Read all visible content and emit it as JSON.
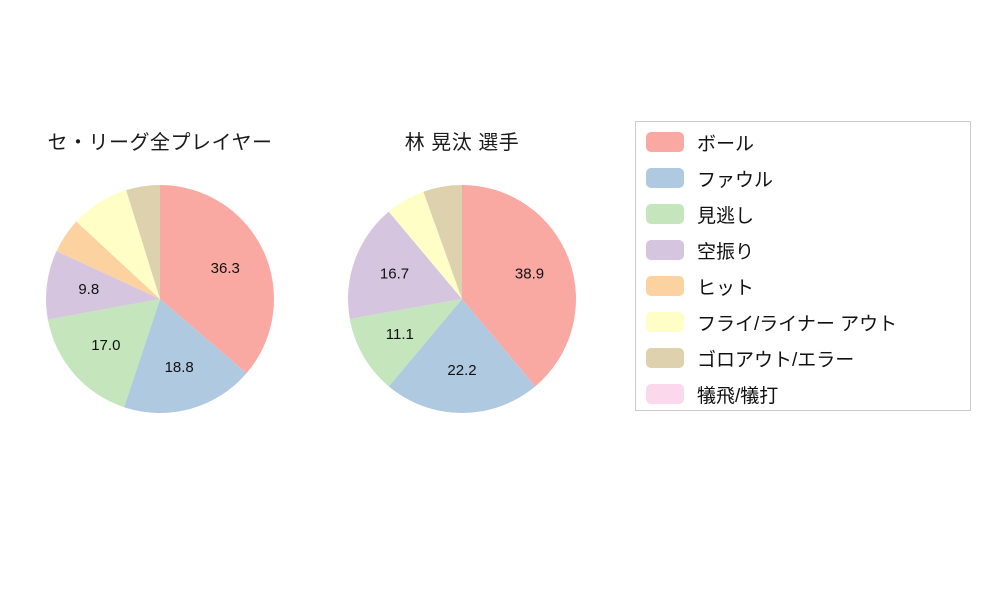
{
  "legend": {
    "items": [
      {
        "label": "ボール",
        "color": "#f9a8a2"
      },
      {
        "label": "ファウル",
        "color": "#afc9e1"
      },
      {
        "label": "見逃し",
        "color": "#c5e5bd"
      },
      {
        "label": "空振り",
        "color": "#d6c5df"
      },
      {
        "label": "ヒット",
        "color": "#fcd2a0"
      },
      {
        "label": "フライ/ライナー アウト",
        "color": "#fefec6"
      },
      {
        "label": "ゴロアウト/エラー",
        "color": "#ddd2ad"
      },
      {
        "label": "犠飛/犠打",
        "color": "#fbd8eb"
      }
    ]
  },
  "chart_data": [
    {
      "type": "pie",
      "title": "セ・リーグ全プレイヤー",
      "values_unit": "percent",
      "start_angle": "top",
      "direction": "clockwise",
      "slices": [
        {
          "label": "ボール",
          "value": 36.3,
          "display": "36.3"
        },
        {
          "label": "ファウル",
          "value": 18.8,
          "display": "18.8"
        },
        {
          "label": "見逃し",
          "value": 17.0,
          "display": "17.0"
        },
        {
          "label": "空振り",
          "value": 9.8,
          "display": "9.8"
        },
        {
          "label": "ヒット",
          "value": 5.0,
          "display": "",
          "estimated": true
        },
        {
          "label": "フライ/ライナー アウト",
          "value": 8.3,
          "display": "",
          "estimated": true
        },
        {
          "label": "ゴロアウト/エラー",
          "value": 4.8,
          "display": "",
          "estimated": true
        },
        {
          "label": "犠飛/犠打",
          "value": 0.0,
          "display": ""
        }
      ]
    },
    {
      "type": "pie",
      "title": "林 晃汰 選手",
      "values_unit": "percent",
      "start_angle": "top",
      "direction": "clockwise",
      "slices": [
        {
          "label": "ボール",
          "value": 38.9,
          "display": "38.9"
        },
        {
          "label": "ファウル",
          "value": 22.2,
          "display": "22.2"
        },
        {
          "label": "見逃し",
          "value": 11.1,
          "display": "11.1"
        },
        {
          "label": "空振り",
          "value": 16.7,
          "display": "16.7"
        },
        {
          "label": "ヒット",
          "value": 0.0,
          "display": ""
        },
        {
          "label": "フライ/ライナー アウト",
          "value": 5.6,
          "display": "",
          "estimated": true
        },
        {
          "label": "ゴロアウト/エラー",
          "value": 5.5,
          "display": "",
          "estimated": true
        },
        {
          "label": "犠飛/犠打",
          "value": 0.0,
          "display": ""
        }
      ]
    }
  ]
}
